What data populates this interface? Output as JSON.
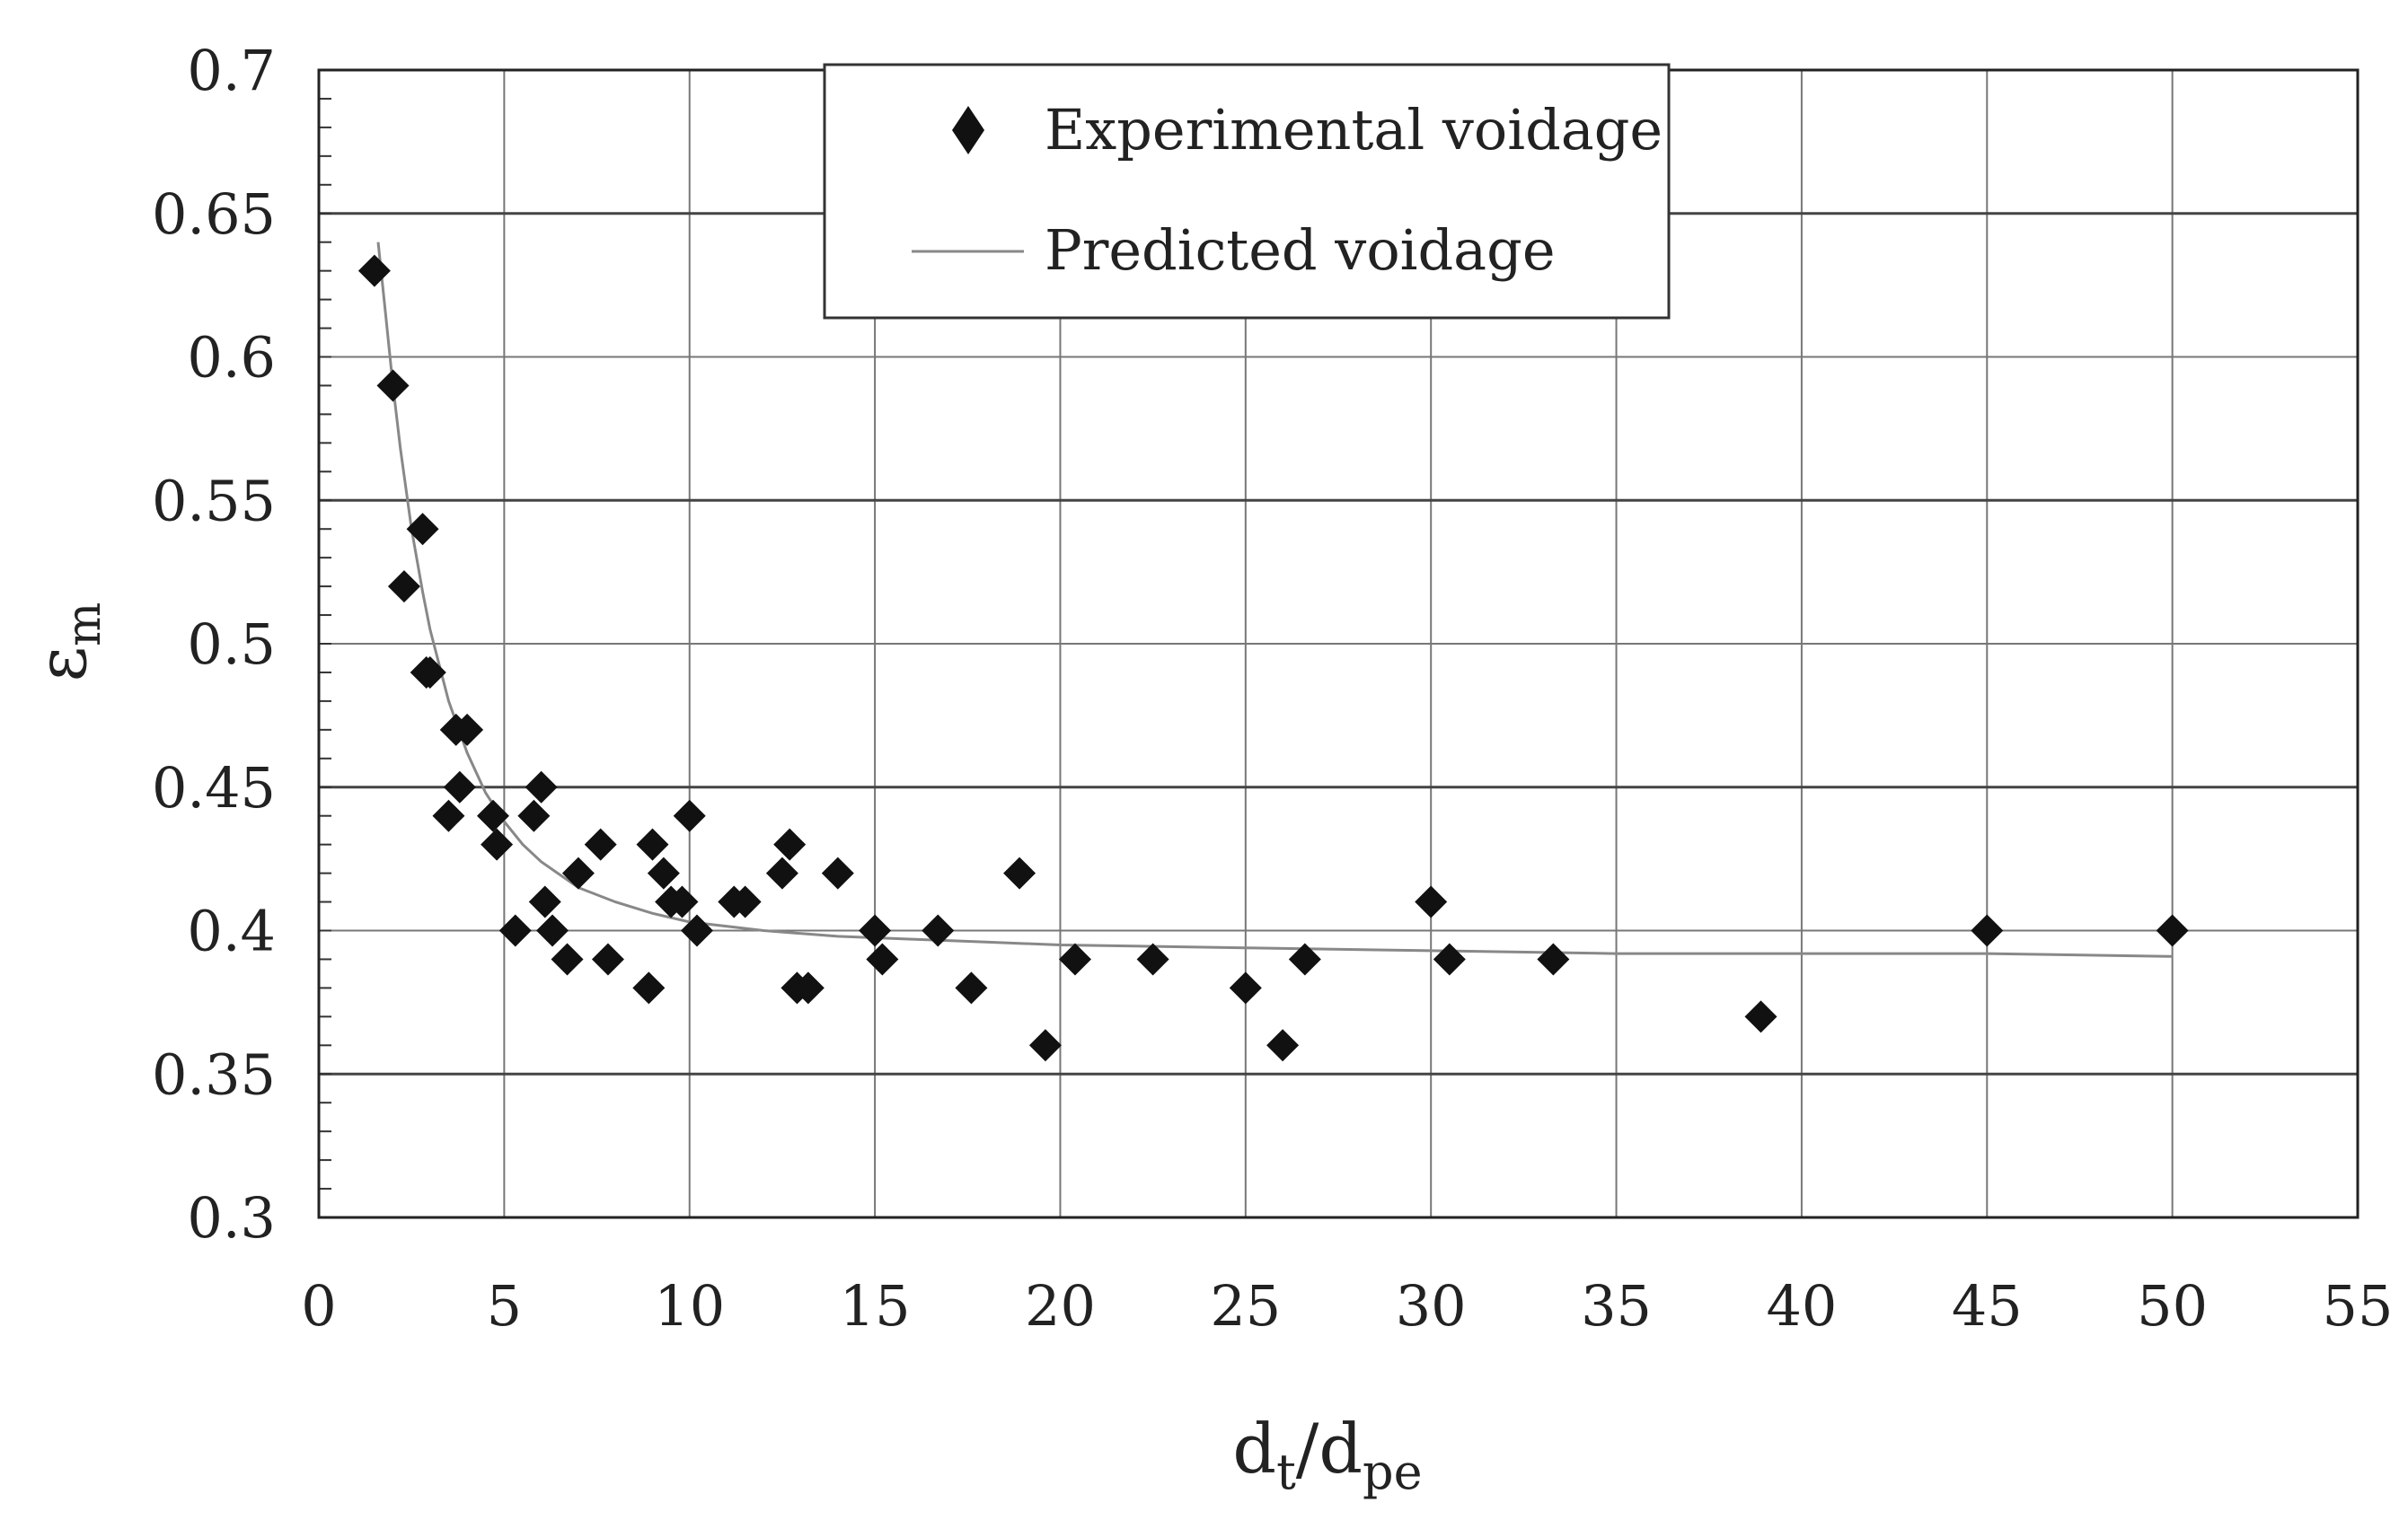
{
  "chart_data": {
    "type": "scatter",
    "title": "",
    "xlabel": {
      "main": "d",
      "sub1": "t",
      "sep": "/d",
      "sub2": "pe"
    },
    "ylabel": {
      "main": "ε",
      "sub": "m"
    },
    "xlim": [
      0,
      55
    ],
    "ylim": [
      0.3,
      0.7
    ],
    "x_ticks": [
      0,
      5,
      10,
      15,
      20,
      25,
      30,
      35,
      40,
      45,
      50,
      55
    ],
    "x_tick_labels": [
      "0",
      "5",
      "10",
      "15",
      "20",
      "25",
      "30",
      "35",
      "40",
      "45",
      "50",
      "55"
    ],
    "y_ticks": [
      0.3,
      0.35,
      0.4,
      0.45,
      0.5,
      0.55,
      0.6,
      0.65,
      0.7
    ],
    "y_tick_labels": [
      "0.3",
      "0.35",
      "0.4",
      "0.45",
      "0.5",
      "0.55",
      "0.6",
      "0.65",
      "0.7"
    ],
    "grid": true,
    "legend_position": "top-center",
    "series": [
      {
        "name": "Experimental voidage",
        "marker": "diamond",
        "color": "#111111",
        "points": [
          [
            1.5,
            0.63
          ],
          [
            2.0,
            0.59
          ],
          [
            2.3,
            0.52
          ],
          [
            2.8,
            0.54
          ],
          [
            2.9,
            0.49
          ],
          [
            3.0,
            0.49
          ],
          [
            3.5,
            0.44
          ],
          [
            3.7,
            0.47
          ],
          [
            3.8,
            0.45
          ],
          [
            4.0,
            0.47
          ],
          [
            4.7,
            0.44
          ],
          [
            4.8,
            0.43
          ],
          [
            5.3,
            0.4
          ],
          [
            5.8,
            0.44
          ],
          [
            6.0,
            0.45
          ],
          [
            6.1,
            0.41
          ],
          [
            6.3,
            0.4
          ],
          [
            6.7,
            0.39
          ],
          [
            7.0,
            0.42
          ],
          [
            7.6,
            0.43
          ],
          [
            7.8,
            0.39
          ],
          [
            8.9,
            0.38
          ],
          [
            9.0,
            0.43
          ],
          [
            9.3,
            0.42
          ],
          [
            9.5,
            0.41
          ],
          [
            9.8,
            0.41
          ],
          [
            10.0,
            0.44
          ],
          [
            10.2,
            0.4
          ],
          [
            11.2,
            0.41
          ],
          [
            11.5,
            0.41
          ],
          [
            12.5,
            0.42
          ],
          [
            12.7,
            0.43
          ],
          [
            12.9,
            0.38
          ],
          [
            13.2,
            0.38
          ],
          [
            14.0,
            0.42
          ],
          [
            15.0,
            0.4
          ],
          [
            15.2,
            0.39
          ],
          [
            16.7,
            0.4
          ],
          [
            17.6,
            0.38
          ],
          [
            18.9,
            0.42
          ],
          [
            19.6,
            0.36
          ],
          [
            20.4,
            0.39
          ],
          [
            22.5,
            0.39
          ],
          [
            25.0,
            0.38
          ],
          [
            26.0,
            0.36
          ],
          [
            26.6,
            0.39
          ],
          [
            30.0,
            0.41
          ],
          [
            30.5,
            0.39
          ],
          [
            33.3,
            0.39
          ],
          [
            38.9,
            0.37
          ],
          [
            45.0,
            0.4
          ],
          [
            50.0,
            0.4
          ]
        ]
      },
      {
        "name": "Predicted voidage",
        "type": "line",
        "color": "#888888",
        "points": [
          [
            1.6,
            0.64
          ],
          [
            1.8,
            0.615
          ],
          [
            2.0,
            0.59
          ],
          [
            2.2,
            0.568
          ],
          [
            2.5,
            0.54
          ],
          [
            2.8,
            0.518
          ],
          [
            3.0,
            0.505
          ],
          [
            3.5,
            0.48
          ],
          [
            4.0,
            0.462
          ],
          [
            4.5,
            0.448
          ],
          [
            5.0,
            0.438
          ],
          [
            5.5,
            0.43
          ],
          [
            6.0,
            0.424
          ],
          [
            7.0,
            0.415
          ],
          [
            8.0,
            0.41
          ],
          [
            9.0,
            0.406
          ],
          [
            10.0,
            0.403
          ],
          [
            12.0,
            0.4
          ],
          [
            14.0,
            0.398
          ],
          [
            16.0,
            0.397
          ],
          [
            18.0,
            0.396
          ],
          [
            20.0,
            0.395
          ],
          [
            25.0,
            0.394
          ],
          [
            30.0,
            0.393
          ],
          [
            35.0,
            0.392
          ],
          [
            40.0,
            0.392
          ],
          [
            45.0,
            0.392
          ],
          [
            50.0,
            0.391
          ]
        ]
      }
    ],
    "legend": {
      "entries": [
        "Experimental voidage",
        "Predicted voidage"
      ]
    }
  }
}
